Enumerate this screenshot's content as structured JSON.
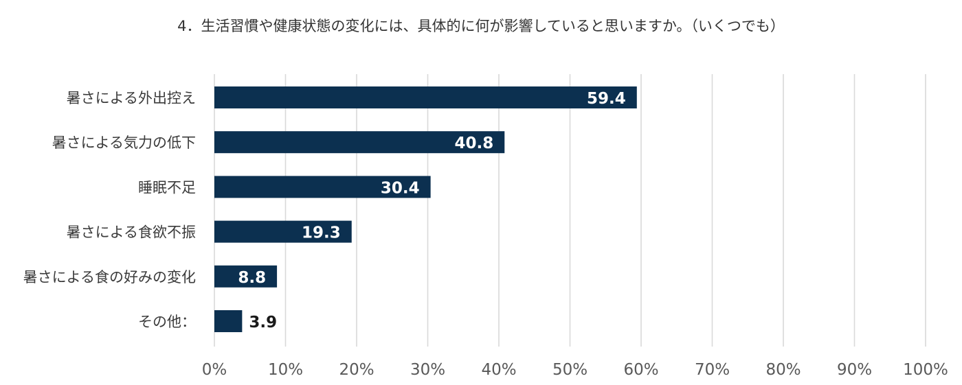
{
  "chart_data": {
    "type": "bar",
    "orientation": "horizontal",
    "title": "4．生活習慣や健康状態の変化には、具体的に何が影響していると思いますか。（いくつでも）",
    "categories": [
      "暑さによる外出控え",
      "暑さによる気力の低下",
      "睡眠不足",
      "暑さによる食欲不振",
      "暑さによる食の好みの変化",
      "その他："
    ],
    "values": [
      59.4,
      40.8,
      30.4,
      19.3,
      8.8,
      3.9
    ],
    "value_labels": [
      "59.4",
      "40.8",
      "30.4",
      "19.3",
      "8.8",
      "3.9"
    ],
    "xlim": [
      0,
      100
    ],
    "ticks": [
      0,
      10,
      20,
      30,
      40,
      50,
      60,
      70,
      80,
      90,
      100
    ],
    "tick_labels": [
      "0%",
      "10%",
      "20%",
      "30%",
      "40%",
      "50%",
      "60%",
      "70%",
      "80%",
      "90%",
      "100%"
    ],
    "xlabel": "",
    "ylabel": "",
    "grid": "vertical",
    "legend": "none",
    "colors": {
      "bar": "#0c3050",
      "grid": "#d9d9d9",
      "label_inside": "#ffffff",
      "label_outside": "#1a1a1a"
    }
  }
}
